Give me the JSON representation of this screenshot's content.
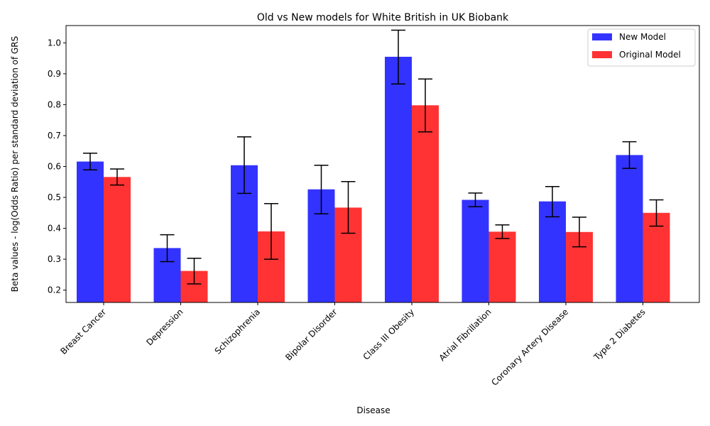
{
  "chart_data": {
    "type": "bar",
    "title": "Old vs New models for White British in UK Biobank",
    "xlabel": "Disease",
    "ylabel": "Beta values - log(Odds Ratio) per standard deviation of GRS",
    "categories": [
      "Breast Cancer",
      "Depression",
      "Schizophrenia",
      "Bipolar Disorder",
      "Class III Obesity",
      "Atrial Fibrillation",
      "Coronary Artery Disease",
      "Type 2 Diabetes"
    ],
    "series": [
      {
        "name": "New Model",
        "color": "#3333ff",
        "values": [
          0.616,
          0.336,
          0.604,
          0.526,
          0.955,
          0.492,
          0.487,
          0.637
        ],
        "err_low": [
          0.589,
          0.292,
          0.513,
          0.447,
          0.867,
          0.47,
          0.437,
          0.594
        ],
        "err_high": [
          0.643,
          0.379,
          0.696,
          0.604,
          1.041,
          0.514,
          0.535,
          0.68
        ]
      },
      {
        "name": "Original Model",
        "color": "#ff3333",
        "values": [
          0.566,
          0.262,
          0.39,
          0.467,
          0.798,
          0.389,
          0.388,
          0.45
        ],
        "err_low": [
          0.54,
          0.22,
          0.3,
          0.384,
          0.712,
          0.367,
          0.34,
          0.407
        ],
        "err_high": [
          0.592,
          0.303,
          0.48,
          0.551,
          0.883,
          0.411,
          0.436,
          0.492
        ]
      }
    ],
    "yticks": [
      0.2,
      0.3,
      0.4,
      0.5,
      0.6,
      0.7,
      0.8,
      0.9,
      1.0
    ],
    "ytick_labels": [
      "0.2",
      "0.3",
      "0.4",
      "0.5",
      "0.6",
      "0.7",
      "0.8",
      "0.9",
      "1.0"
    ],
    "ylim": [
      0.16,
      1.056
    ],
    "grid": false,
    "legend_position": "top-right"
  }
}
